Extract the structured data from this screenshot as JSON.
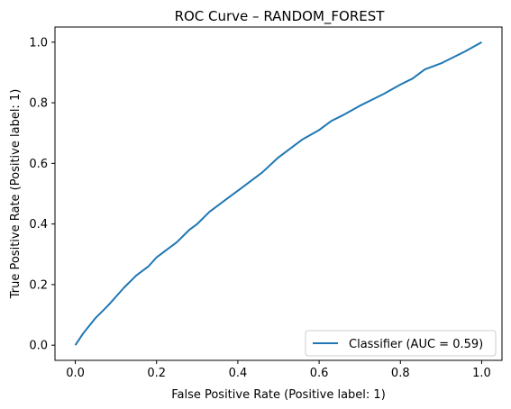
{
  "chart_data": {
    "type": "line",
    "title": "ROC Curve – RANDOM_FOREST",
    "xlabel": "False Positive Rate (Positive label: 1)",
    "ylabel": "True Positive Rate (Positive label: 1)",
    "xlim": [
      -0.05,
      1.05
    ],
    "ylim": [
      -0.05,
      1.05
    ],
    "xticks": [
      0.0,
      0.2,
      0.4,
      0.6,
      0.8,
      1.0
    ],
    "yticks": [
      0.0,
      0.2,
      0.4,
      0.6,
      0.8,
      1.0
    ],
    "xtick_labels": [
      "0.0",
      "0.2",
      "0.4",
      "0.6",
      "0.8",
      "1.0"
    ],
    "ytick_labels": [
      "0.0",
      "0.2",
      "0.4",
      "0.6",
      "0.8",
      "1.0"
    ],
    "grid": false,
    "legend_position": "lower-right",
    "series": [
      {
        "name": "Classifier (AUC = 0.59)",
        "color": "#1f77b4",
        "x": [
          0.0,
          0.02,
          0.05,
          0.08,
          0.1,
          0.12,
          0.15,
          0.18,
          0.2,
          0.22,
          0.25,
          0.28,
          0.3,
          0.33,
          0.36,
          0.4,
          0.43,
          0.46,
          0.5,
          0.53,
          0.56,
          0.6,
          0.63,
          0.66,
          0.7,
          0.73,
          0.76,
          0.8,
          0.83,
          0.86,
          0.9,
          0.93,
          0.96,
          1.0
        ],
        "y": [
          0.0,
          0.04,
          0.09,
          0.13,
          0.16,
          0.19,
          0.23,
          0.26,
          0.29,
          0.31,
          0.34,
          0.38,
          0.4,
          0.44,
          0.47,
          0.51,
          0.54,
          0.57,
          0.62,
          0.65,
          0.68,
          0.71,
          0.74,
          0.76,
          0.79,
          0.81,
          0.83,
          0.86,
          0.88,
          0.91,
          0.93,
          0.95,
          0.97,
          1.0
        ]
      }
    ]
  }
}
